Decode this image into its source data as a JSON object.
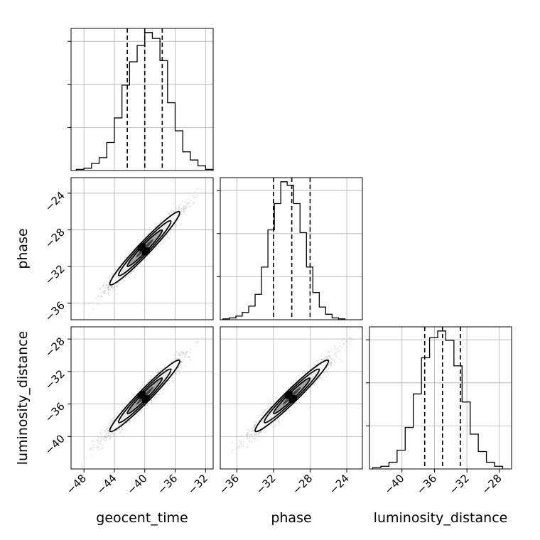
{
  "chart_data": {
    "type": "corner",
    "parameters": [
      "geocent_time",
      "phase",
      "luminosity_distance"
    ],
    "grid": true,
    "histograms": [
      {
        "parameter": "geocent_time",
        "bin_edges": [
          -49.0,
          -48.0,
          -47.0,
          -46.0,
          -45.0,
          -44.0,
          -43.0,
          -42.0,
          -41.0,
          -40.0,
          -39.0,
          -38.0,
          -37.0,
          -36.0,
          -35.0,
          -34.0,
          -33.0,
          -32.0,
          -31.0
        ],
        "counts": [
          1,
          2,
          6,
          11,
          24,
          45,
          73,
          93,
          107,
          118,
          113,
          94,
          58,
          34,
          16,
          9,
          4,
          1
        ],
        "quantiles": [
          -42.3,
          -40.0,
          -37.7
        ],
        "xlim": [
          -49.7,
          -31.0
        ]
      },
      {
        "parameter": "phase",
        "bin_edges": [
          -37.5,
          -36.8,
          -36.1,
          -35.4,
          -34.7,
          -34.0,
          -33.3,
          -32.6,
          -31.9,
          -31.2,
          -30.5,
          -29.8,
          -29.1,
          -28.4,
          -27.7,
          -27.0,
          -26.3,
          -25.6,
          -24.9,
          -24.2
        ],
        "counts": [
          1,
          2,
          4,
          8,
          15,
          28,
          58,
          99,
          128,
          152,
          148,
          128,
          96,
          58,
          30,
          14,
          6,
          2,
          1
        ],
        "quantiles": [
          -32.0,
          -30.0,
          -28.0
        ],
        "xlim": [
          -37.8,
          -22.3
        ]
      },
      {
        "parameter": "luminosity_distance",
        "bin_edges": [
          -43.6,
          -42.6,
          -41.6,
          -40.6,
          -39.6,
          -38.6,
          -37.6,
          -36.6,
          -35.6,
          -34.6,
          -33.6,
          -32.6,
          -31.6,
          -30.6,
          -29.6,
          -28.6,
          -27.6
        ],
        "counts": [
          1,
          2,
          5,
          14,
          31,
          56,
          83,
          98,
          103,
          96,
          77,
          50,
          26,
          13,
          5,
          2
        ],
        "quantiles": [
          -37.2,
          -35.0,
          -32.8
        ],
        "xlim": [
          -44.0,
          -26.5
        ]
      }
    ],
    "panels_2d": [
      {
        "x": "geocent_time",
        "y": "phase",
        "xlim": [
          -49.7,
          -31.0
        ],
        "ylim": [
          -37.8,
          -22.3
        ],
        "center": [
          -40.0,
          -30.0
        ],
        "sigma": [
          2.3,
          2.0
        ],
        "rho": 0.97,
        "scatter_count": 2400
      },
      {
        "x": "geocent_time",
        "y": "luminosity_distance",
        "xlim": [
          -49.7,
          -31.0
        ],
        "ylim": [
          -44.0,
          -26.5
        ],
        "center": [
          -40.0,
          -35.0
        ],
        "sigma": [
          2.3,
          2.2
        ],
        "rho": 0.97,
        "scatter_count": 2400
      },
      {
        "x": "phase",
        "y": "luminosity_distance",
        "xlim": [
          -37.8,
          -22.3
        ],
        "ylim": [
          -44.0,
          -26.5
        ],
        "center": [
          -30.0,
          -35.0
        ],
        "sigma": [
          2.0,
          2.2
        ],
        "rho": 0.97,
        "scatter_count": 2400
      }
    ],
    "ticks": {
      "geocent_time": [
        -48,
        -44,
        -40,
        -36,
        -32
      ],
      "phase": [
        -36,
        -32,
        -28,
        -24
      ],
      "luminosity_distance": [
        -40,
        -36,
        -32,
        -28
      ]
    },
    "tick_labels": {
      "geocent_time": [
        "−48",
        "−44",
        "−40",
        "−36",
        "−32"
      ],
      "phase": [
        "−36",
        "−32",
        "−28",
        "−24"
      ],
      "luminosity_distance": [
        "−40",
        "−36",
        "−32",
        "−28"
      ]
    },
    "axis_labels": {
      "x": [
        "geocent_time",
        "phase",
        "luminosity_distance"
      ],
      "y": [
        "phase",
        "luminosity_distance"
      ]
    },
    "colors": {
      "line": "#000000",
      "scatter": "#9a9a9a",
      "grid": "#b0b0b0"
    }
  }
}
